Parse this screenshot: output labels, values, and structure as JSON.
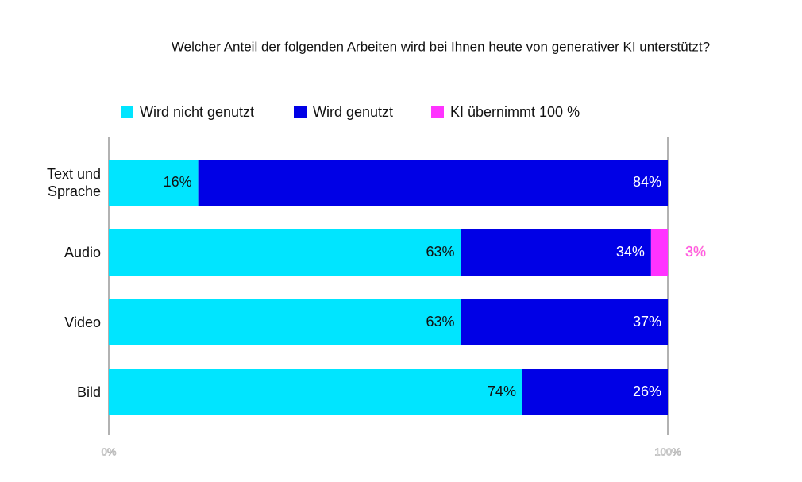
{
  "chart_data": {
    "type": "stacked-bar-horizontal",
    "title": "Welcher Anteil der folgenden Arbeiten wird bei Ihnen heute von generativer KI unterstützt?",
    "categories": [
      "Text und Sprache",
      "Audio",
      "Video",
      "Bild"
    ],
    "series": [
      {
        "name": "Wird nicht genutzt",
        "color": "#00e5ff",
        "values": [
          16,
          63,
          63,
          74
        ],
        "value_labels": [
          "16%",
          "63%",
          "63%",
          "74%"
        ]
      },
      {
        "name": "Wird genutzt",
        "color": "#0000e6",
        "values": [
          84,
          34,
          37,
          26
        ],
        "value_labels": [
          "84%",
          "34%",
          "37%",
          "26%"
        ]
      },
      {
        "name": "KI übernimmt 100 %",
        "color": "#ff33ff",
        "values": [
          null,
          3,
          null,
          null
        ],
        "value_labels": [
          null,
          "3%",
          null,
          null
        ]
      }
    ],
    "xlim": [
      0,
      100
    ],
    "xticks": [
      {
        "value": 0,
        "label": "0%"
      },
      {
        "value": 100,
        "label": "100%"
      }
    ],
    "legend": "top"
  }
}
